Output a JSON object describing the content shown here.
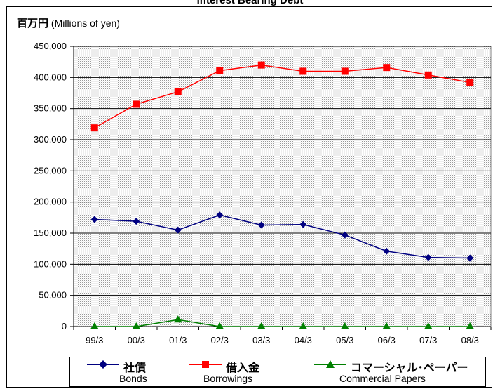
{
  "chart_data": {
    "type": "line",
    "title": "Interest Bearing Debt",
    "ylabel": "百万円",
    "ylabel_sub": "(Millions of yen)",
    "categories": [
      "99/3",
      "00/3",
      "01/3",
      "02/3",
      "03/3",
      "04/3",
      "05/3",
      "06/3",
      "07/3",
      "08/3"
    ],
    "ylim": [
      0,
      450000
    ],
    "y_ticks": [
      0,
      50000,
      100000,
      150000,
      200000,
      250000,
      300000,
      350000,
      400000,
      450000
    ],
    "y_tick_labels": [
      "0",
      "50,000",
      "100,000",
      "150,000",
      "200,000",
      "250,000",
      "300,000",
      "350,000",
      "400,000",
      "450,000"
    ],
    "grid": true,
    "legend_position": "bottom",
    "series": [
      {
        "name": "社債",
        "name_en": "Bonds",
        "color": "#000080",
        "marker": "diamond",
        "values": [
          172000,
          169000,
          155000,
          179000,
          163000,
          164000,
          147000,
          121000,
          111000,
          110000
        ]
      },
      {
        "name": "借入金",
        "name_en": "Borrowings",
        "color": "#ff0000",
        "marker": "square",
        "values": [
          319000,
          357000,
          377000,
          411000,
          420000,
          410000,
          410000,
          416000,
          404000,
          392000
        ]
      },
      {
        "name": "コマーシャル･ペーパー",
        "name_en": "Commercial Papers",
        "color": "#008000",
        "marker": "triangle",
        "values": [
          0,
          0,
          11000,
          0,
          0,
          0,
          0,
          0,
          0,
          0
        ]
      }
    ]
  }
}
